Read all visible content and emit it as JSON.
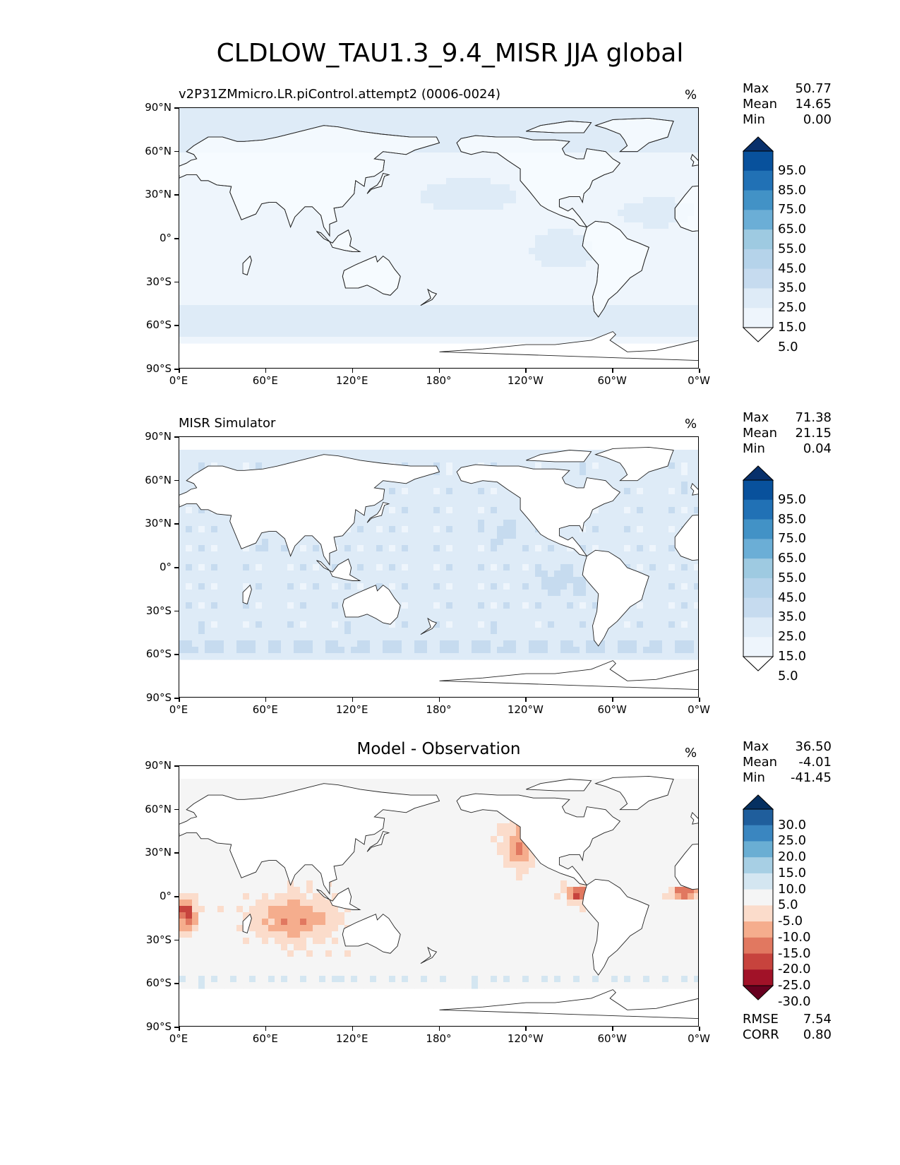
{
  "title": "CLDLOW_TAU1.3_9.4_MISR JJA global",
  "x_ticks": [
    "0°E",
    "60°E",
    "120°E",
    "180°",
    "120°W",
    "60°W",
    "0°W"
  ],
  "y_ticks": [
    "90°N",
    "60°N",
    "30°N",
    "0°",
    "30°S",
    "60°S",
    "90°S"
  ],
  "panels": [
    {
      "title": "v2P31ZMmicro.LR.piControl.attempt2 (0006-0024)",
      "title_style": "left",
      "unit": "%",
      "stats": [
        {
          "label": "Max",
          "value": "50.77"
        },
        {
          "label": "Mean",
          "value": "14.65"
        },
        {
          "label": "Min",
          "value": "0.00"
        }
      ],
      "colorbar": {
        "labels": [
          "95.0",
          "85.0",
          "75.0",
          "65.0",
          "55.0",
          "45.0",
          "35.0",
          "25.0",
          "15.0",
          "5.0"
        ],
        "colors": [
          "#08306b",
          "#08519c",
          "#2171b5",
          "#4292c6",
          "#6baed6",
          "#9ecae1",
          "#b5d3ea",
          "#c6dbef",
          "#deebf7",
          "#eef5fc",
          "#ffffff"
        ]
      }
    },
    {
      "title": "MISR Simulator",
      "title_style": "left",
      "unit": "%",
      "stats": [
        {
          "label": "Max",
          "value": "71.38"
        },
        {
          "label": "Mean",
          "value": "21.15"
        },
        {
          "label": "Min",
          "value": "0.04"
        }
      ],
      "colorbar": {
        "labels": [
          "95.0",
          "85.0",
          "75.0",
          "65.0",
          "55.0",
          "45.0",
          "35.0",
          "25.0",
          "15.0",
          "5.0"
        ],
        "colors": [
          "#08306b",
          "#08519c",
          "#2171b5",
          "#4292c6",
          "#6baed6",
          "#9ecae1",
          "#b5d3ea",
          "#c6dbef",
          "#deebf7",
          "#eef5fc",
          "#ffffff"
        ]
      }
    },
    {
      "title": "Model - Observation",
      "title_style": "center",
      "unit": "%",
      "stats": [
        {
          "label": "Max",
          "value": "36.50"
        },
        {
          "label": "Mean",
          "value": "-4.01"
        },
        {
          "label": "Min",
          "value": "-41.45"
        }
      ],
      "extra_stats": [
        {
          "label": "RMSE",
          "value": "7.54"
        },
        {
          "label": "CORR",
          "value": "0.80"
        }
      ],
      "colorbar": {
        "labels": [
          "30.0",
          "25.0",
          "20.0",
          "15.0",
          "10.0",
          "5.0",
          "-5.0",
          "-10.0",
          "-15.0",
          "-20.0",
          "-25.0",
          "-30.0"
        ],
        "colors": [
          "#053061",
          "#1f5e9c",
          "#3a86c0",
          "#6aaed3",
          "#a7cfe4",
          "#d4e6f1",
          "#f5f5f5",
          "#fbdccb",
          "#f5ad8d",
          "#e17860",
          "#c7433d",
          "#a11228",
          "#67001f"
        ]
      }
    }
  ]
}
